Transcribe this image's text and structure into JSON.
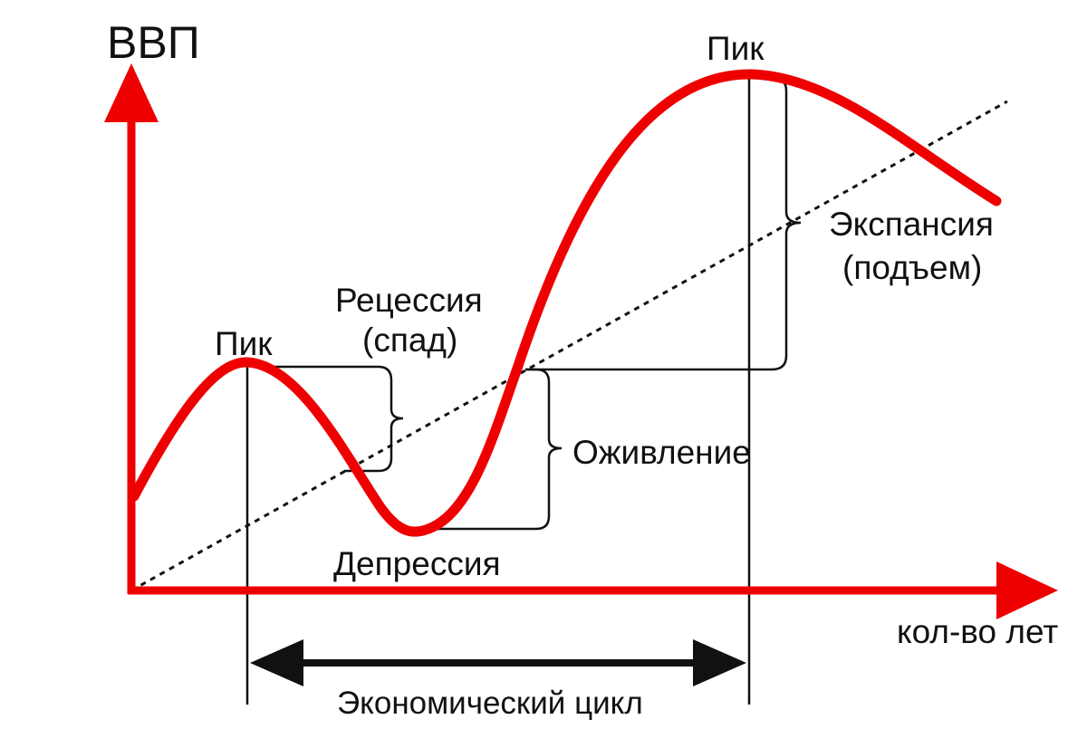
{
  "labels": {
    "y_axis": "ВВП",
    "x_axis": "кол-во лет",
    "peak_left": "Пик",
    "peak_right": "Пик",
    "recession_line1": "Рецессия",
    "recession_line2": "(спад)",
    "depression": "Депрессия",
    "recovery": "Оживление",
    "expansion_line1": "Экспансия",
    "expansion_line2": "(подъем)",
    "economic_cycle": "Экономический цикл"
  },
  "colors": {
    "curve": "#ee0000",
    "axes": "#ee0000",
    "lines": "#111111",
    "trend": "#111111"
  }
}
